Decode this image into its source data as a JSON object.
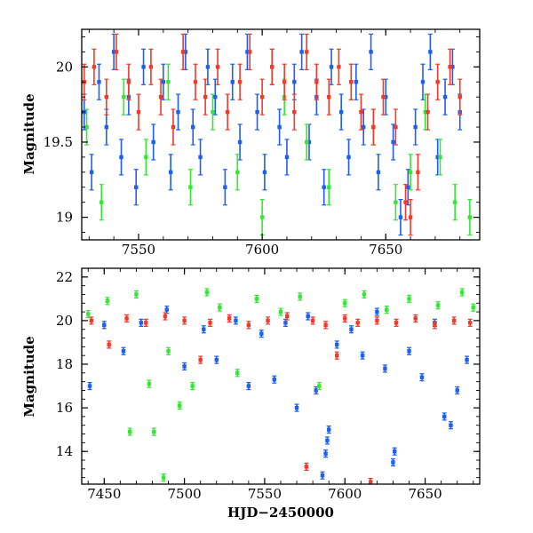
{
  "figure": {
    "xlabel": "HJD−2450000",
    "top_ylabel": "Magnitude",
    "bottom_ylabel": "Magnitude"
  },
  "chart_data": [
    {
      "type": "scatter",
      "title": "",
      "xlabel": "",
      "ylabel": "Magnitude",
      "xlim": [
        7527,
        7688
      ],
      "ylim": [
        20.25,
        18.85
      ],
      "y_inverted": true,
      "x_ticks": [
        7550,
        7600,
        7650
      ],
      "y_ticks": [
        19,
        19.5,
        20
      ],
      "grid": false,
      "colors": {
        "blue": "#1e5ef0",
        "green": "#33e833",
        "red": "#f23a2a"
      },
      "series": [
        {
          "color": "blue",
          "x": [
            7528,
            7531,
            7534,
            7537,
            7540,
            7543,
            7546,
            7549,
            7552,
            7556,
            7560,
            7563,
            7566,
            7569,
            7572,
            7575,
            7578,
            7581,
            7585,
            7588,
            7591,
            7594,
            7598,
            7601,
            7604,
            7607,
            7610,
            7613,
            7616,
            7619,
            7622,
            7625,
            7628,
            7632,
            7635,
            7638,
            7641,
            7644,
            7647,
            7650,
            7653,
            7656,
            7659,
            7662,
            7665,
            7668,
            7671,
            7674,
            7677,
            7680
          ],
          "y": [
            19.7,
            19.3,
            19.9,
            19.6,
            20.1,
            19.4,
            19.8,
            19.2,
            20.0,
            19.5,
            19.9,
            19.3,
            19.7,
            20.1,
            19.6,
            19.4,
            20.0,
            19.8,
            19.2,
            19.9,
            19.5,
            20.1,
            19.7,
            19.3,
            20.0,
            19.6,
            19.4,
            19.9,
            20.1,
            19.5,
            19.8,
            19.2,
            20.0,
            19.7,
            19.4,
            19.9,
            19.6,
            20.1,
            19.3,
            19.8,
            19.5,
            19.0,
            19.2,
            19.6,
            19.9,
            20.1,
            19.4,
            19.8,
            20.0,
            19.7
          ]
        },
        {
          "color": "green",
          "x": [
            7529,
            7535,
            7544,
            7553,
            7562,
            7571,
            7580,
            7590,
            7600,
            7609,
            7618,
            7627,
            7636,
            7645,
            7654,
            7660,
            7666,
            7672,
            7678,
            7684
          ],
          "y": [
            19.6,
            19.1,
            19.8,
            19.4,
            19.9,
            19.2,
            19.7,
            19.3,
            19.0,
            19.8,
            19.5,
            19.2,
            19.9,
            19.6,
            19.1,
            19.3,
            19.7,
            19.4,
            19.1,
            19.0
          ]
        },
        {
          "color": "red",
          "x": [
            7528,
            7532,
            7537,
            7541,
            7546,
            7550,
            7555,
            7559,
            7564,
            7568,
            7573,
            7577,
            7582,
            7586,
            7591,
            7595,
            7600,
            7604,
            7609,
            7613,
            7618,
            7622,
            7627,
            7631,
            7636,
            7640,
            7645,
            7649,
            7654,
            7658,
            7660,
            7663,
            7667,
            7671,
            7676,
            7680
          ],
          "y": [
            19.9,
            20.0,
            19.8,
            20.1,
            19.9,
            19.7,
            20.0,
            19.8,
            19.6,
            20.1,
            19.9,
            19.8,
            20.0,
            19.7,
            19.9,
            20.1,
            19.8,
            20.0,
            19.9,
            19.7,
            20.1,
            19.9,
            19.8,
            20.0,
            19.9,
            19.7,
            19.6,
            19.8,
            19.6,
            19.1,
            19.0,
            19.3,
            19.7,
            19.9,
            20.0,
            19.8
          ]
        }
      ]
    },
    {
      "type": "scatter",
      "title": "",
      "xlabel": "HJD−2450000",
      "ylabel": "Magnitude",
      "xlim": [
        7436,
        7684
      ],
      "ylim": [
        22.4,
        12.5
      ],
      "y_inverted": true,
      "x_ticks": [
        7450,
        7500,
        7550,
        7600,
        7650
      ],
      "y_ticks": [
        14,
        16,
        18,
        20,
        22
      ],
      "grid": false,
      "series": [
        {
          "color": "blue",
          "x": [
            7441,
            7450,
            7462,
            7473,
            7489,
            7500,
            7512,
            7520,
            7532,
            7540,
            7548,
            7556,
            7563,
            7570,
            7577,
            7582,
            7586,
            7588,
            7589,
            7590,
            7595,
            7604,
            7611,
            7620,
            7625,
            7630,
            7631,
            7640,
            7648,
            7656,
            7662,
            7666,
            7670,
            7676
          ],
          "y": [
            17.0,
            19.8,
            18.6,
            19.9,
            20.5,
            17.9,
            19.6,
            18.2,
            20.0,
            17.0,
            19.4,
            17.3,
            19.9,
            16.0,
            20.2,
            16.8,
            12.9,
            13.9,
            14.5,
            15.0,
            18.9,
            19.6,
            18.4,
            20.4,
            17.8,
            13.5,
            14.0,
            18.6,
            17.4,
            19.9,
            15.6,
            15.2,
            16.8,
            18.2
          ]
        },
        {
          "color": "green",
          "x": [
            7440,
            7452,
            7466,
            7470,
            7478,
            7481,
            7487,
            7490,
            7497,
            7505,
            7514,
            7522,
            7533,
            7545,
            7560,
            7572,
            7584,
            7600,
            7612,
            7626,
            7640,
            7658,
            7673,
            7680
          ],
          "y": [
            20.3,
            20.9,
            14.9,
            21.2,
            17.1,
            14.9,
            12.8,
            18.6,
            16.1,
            17.0,
            21.3,
            20.6,
            17.6,
            21.0,
            20.4,
            21.1,
            17.0,
            20.8,
            21.2,
            20.5,
            21.0,
            20.7,
            21.3,
            20.6
          ]
        },
        {
          "color": "red",
          "x": [
            7442,
            7453,
            7464,
            7476,
            7488,
            7500,
            7510,
            7516,
            7528,
            7540,
            7552,
            7564,
            7576,
            7580,
            7588,
            7595,
            7600,
            7608,
            7616,
            7620,
            7632,
            7644,
            7656,
            7668,
            7678
          ],
          "y": [
            20.0,
            18.9,
            20.1,
            19.9,
            20.2,
            20.0,
            18.2,
            19.9,
            20.1,
            19.8,
            20.0,
            20.2,
            13.3,
            20.0,
            19.8,
            18.4,
            20.1,
            19.9,
            12.6,
            20.0,
            19.9,
            20.1,
            19.8,
            20.0,
            19.9
          ]
        }
      ]
    }
  ]
}
